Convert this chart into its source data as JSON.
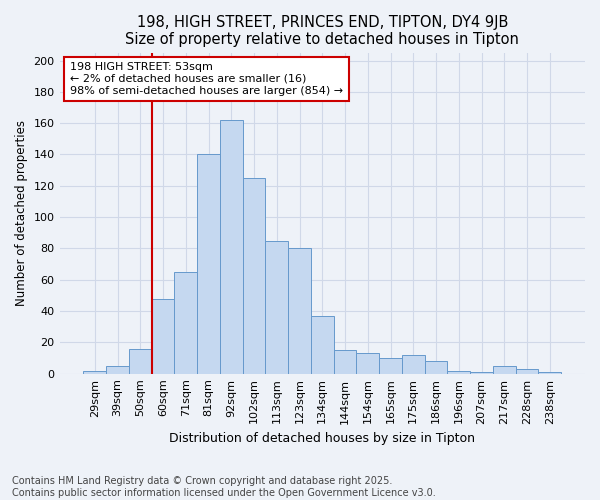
{
  "title1": "198, HIGH STREET, PRINCES END, TIPTON, DY4 9JB",
  "title2": "Size of property relative to detached houses in Tipton",
  "xlabel": "Distribution of detached houses by size in Tipton",
  "ylabel": "Number of detached properties",
  "categories": [
    "29sqm",
    "39sqm",
    "50sqm",
    "60sqm",
    "71sqm",
    "81sqm",
    "92sqm",
    "102sqm",
    "113sqm",
    "123sqm",
    "134sqm",
    "144sqm",
    "154sqm",
    "165sqm",
    "175sqm",
    "186sqm",
    "196sqm",
    "207sqm",
    "217sqm",
    "228sqm",
    "238sqm"
  ],
  "values": [
    2,
    5,
    16,
    48,
    65,
    140,
    162,
    125,
    85,
    80,
    37,
    15,
    13,
    10,
    12,
    8,
    2,
    1,
    5,
    3,
    1
  ],
  "bar_color": "#c5d8f0",
  "bar_edge_color": "#6699cc",
  "vline_x_index": 2,
  "vline_color": "#cc0000",
  "annotation_text": "198 HIGH STREET: 53sqm\n← 2% of detached houses are smaller (16)\n98% of semi-detached houses are larger (854) →",
  "annotation_box_color": "#ffffff",
  "annotation_box_edge": "#cc0000",
  "footer": "Contains HM Land Registry data © Crown copyright and database right 2025.\nContains public sector information licensed under the Open Government Licence v3.0.",
  "ylim": [
    0,
    205
  ],
  "yticks": [
    0,
    20,
    40,
    60,
    80,
    100,
    120,
    140,
    160,
    180,
    200
  ],
  "bg_color": "#eef2f8",
  "grid_color": "#d0d8e8",
  "title1_fontsize": 10.5,
  "title2_fontsize": 9.5,
  "tick_fontsize": 8,
  "ylabel_fontsize": 8.5,
  "xlabel_fontsize": 9,
  "annot_fontsize": 8,
  "footer_fontsize": 7
}
